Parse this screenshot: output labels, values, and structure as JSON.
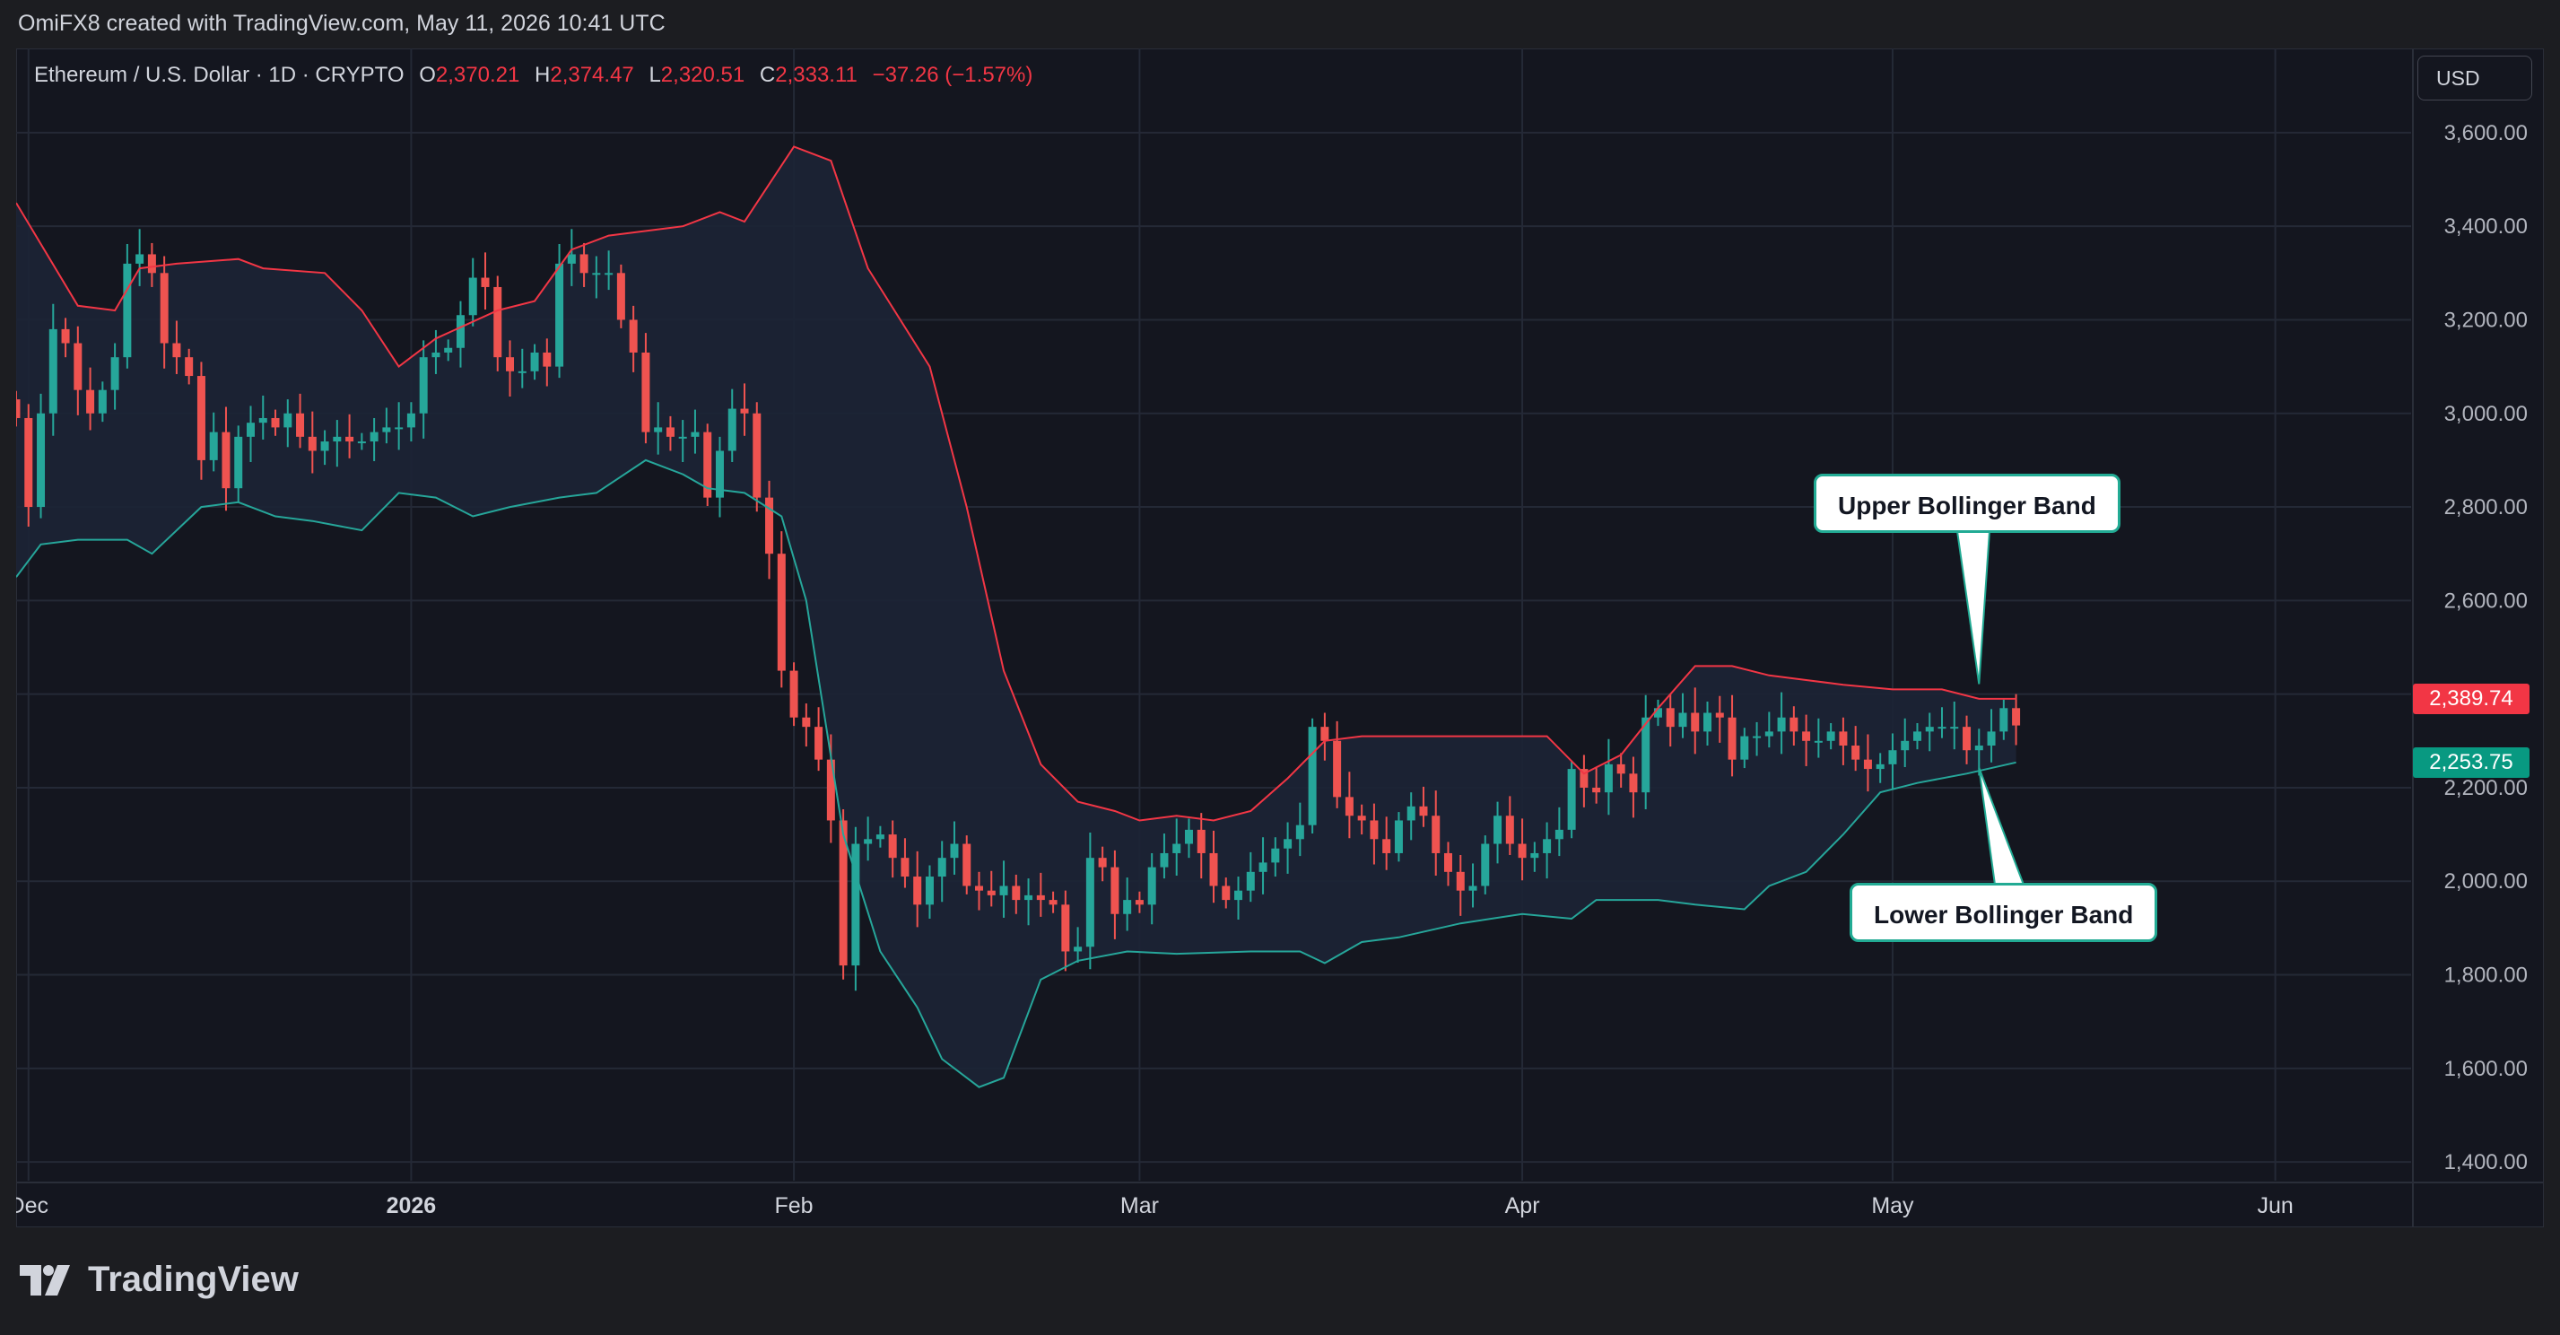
{
  "header": {
    "text": "OmiFX8 created with TradingView.com, May 11, 2026 10:41 UTC"
  },
  "legend": {
    "symbol": "Ethereum / U.S. Dollar · 1D · CRYPTO",
    "open_label": "O",
    "open": "2,370.21",
    "high_label": "H",
    "high": "2,374.47",
    "low_label": "L",
    "low": "2,320.51",
    "close_label": "C",
    "close": "2,333.11",
    "change": "−37.26 (−1.57%)"
  },
  "currency_button": {
    "label": "USD"
  },
  "price_tags": {
    "upper": {
      "label": "2,389.74",
      "color": "#f23645"
    },
    "lower": {
      "label": "2,253.75",
      "color": "#089981"
    }
  },
  "annotations": {
    "upper": "Upper Bollinger Band",
    "lower": "Lower Bollinger Band"
  },
  "footer": {
    "logo_text": "TradingView",
    "logo_icon": "tradingview-logo-icon"
  },
  "colors": {
    "up": "#26a69a",
    "down": "#ef5350",
    "upper_band": "#f23645",
    "lower_band": "#26a69a",
    "band_fill": "#1c2435",
    "grid": "#242936"
  },
  "chart_data": {
    "type": "candlestick",
    "title": "Ethereum / U.S. Dollar · 1D · CRYPTO",
    "x_ticks": [
      {
        "label": "Dec",
        "date": "2025-12-01"
      },
      {
        "label": "2026",
        "date": "2026-01-01",
        "bold": true
      },
      {
        "label": "Feb",
        "date": "2026-02-01"
      },
      {
        "label": "Mar",
        "date": "2026-03-01"
      },
      {
        "label": "Apr",
        "date": "2026-04-01"
      },
      {
        "label": "May",
        "date": "2026-05-01"
      },
      {
        "label": "Jun",
        "date": "2026-06-01"
      }
    ],
    "y_ticks": [
      "3,600.00",
      "3,400.00",
      "3,200.00",
      "3,000.00",
      "2,800.00",
      "2,600.00",
      "2,400.00",
      "2,200.00",
      "2,000.00",
      "1,800.00",
      "1,600.00",
      "1,400.00"
    ],
    "y_tick_values": [
      3600,
      3400,
      3200,
      3000,
      2800,
      2600,
      2400,
      2200,
      2000,
      1800,
      1600,
      1400
    ],
    "x_range": [
      "2025-11-30",
      "2026-06-12"
    ],
    "y_range": [
      1360,
      3780
    ],
    "grid": true,
    "close_series": [
      [
        "2025-11-30",
        2990
      ],
      [
        "2025-12-01",
        2800
      ],
      [
        "2025-12-02",
        3000
      ],
      [
        "2025-12-03",
        3180
      ],
      [
        "2025-12-04",
        3150
      ],
      [
        "2025-12-05",
        3050
      ],
      [
        "2025-12-06",
        3000
      ],
      [
        "2025-12-07",
        3050
      ],
      [
        "2025-12-08",
        3120
      ],
      [
        "2025-12-09",
        3320
      ],
      [
        "2025-12-10",
        3340
      ],
      [
        "2025-12-11",
        3300
      ],
      [
        "2025-12-12",
        3150
      ],
      [
        "2025-12-13",
        3120
      ],
      [
        "2025-12-14",
        3080
      ],
      [
        "2025-12-15",
        2900
      ],
      [
        "2025-12-16",
        2960
      ],
      [
        "2025-12-17",
        2840
      ],
      [
        "2025-12-18",
        2950
      ],
      [
        "2025-12-19",
        2980
      ],
      [
        "2025-12-20",
        2990
      ],
      [
        "2025-12-21",
        2970
      ],
      [
        "2025-12-22",
        3000
      ],
      [
        "2025-12-23",
        2950
      ],
      [
        "2025-12-24",
        2920
      ],
      [
        "2025-12-25",
        2940
      ],
      [
        "2025-12-26",
        2950
      ],
      [
        "2025-12-27",
        2940
      ],
      [
        "2025-12-28",
        2940
      ],
      [
        "2025-12-29",
        2960
      ],
      [
        "2025-12-30",
        2970
      ],
      [
        "2025-12-31",
        2970
      ],
      [
        "2026-01-01",
        3000
      ],
      [
        "2026-01-02",
        3120
      ],
      [
        "2026-01-03",
        3130
      ],
      [
        "2026-01-04",
        3140
      ],
      [
        "2026-01-05",
        3210
      ],
      [
        "2026-01-06",
        3290
      ],
      [
        "2026-01-07",
        3270
      ],
      [
        "2026-01-08",
        3120
      ],
      [
        "2026-01-09",
        3090
      ],
      [
        "2026-01-10",
        3090
      ],
      [
        "2026-01-11",
        3130
      ],
      [
        "2026-01-12",
        3100
      ],
      [
        "2026-01-13",
        3320
      ],
      [
        "2026-01-14",
        3340
      ],
      [
        "2026-01-15",
        3300
      ],
      [
        "2026-01-16",
        3300
      ],
      [
        "2026-01-17",
        3300
      ],
      [
        "2026-01-18",
        3200
      ],
      [
        "2026-01-19",
        3130
      ],
      [
        "2026-01-20",
        2960
      ],
      [
        "2026-01-21",
        2970
      ],
      [
        "2026-01-22",
        2950
      ],
      [
        "2026-01-23",
        2950
      ],
      [
        "2026-01-24",
        2960
      ],
      [
        "2026-01-25",
        2820
      ],
      [
        "2026-01-26",
        2920
      ],
      [
        "2026-01-27",
        3010
      ],
      [
        "2026-01-28",
        3000
      ],
      [
        "2026-01-29",
        2820
      ],
      [
        "2026-01-30",
        2700
      ],
      [
        "2026-01-31",
        2450
      ],
      [
        "2026-02-01",
        2350
      ],
      [
        "2026-02-02",
        2330
      ],
      [
        "2026-02-03",
        2260
      ],
      [
        "2026-02-04",
        2130
      ],
      [
        "2026-02-05",
        1820
      ],
      [
        "2026-02-06",
        2080
      ],
      [
        "2026-02-07",
        2090
      ],
      [
        "2026-02-08",
        2100
      ],
      [
        "2026-02-09",
        2050
      ],
      [
        "2026-02-10",
        2010
      ],
      [
        "2026-02-11",
        1950
      ],
      [
        "2026-02-12",
        2010
      ],
      [
        "2026-02-13",
        2050
      ],
      [
        "2026-02-14",
        2080
      ],
      [
        "2026-02-15",
        1990
      ],
      [
        "2026-02-16",
        1980
      ],
      [
        "2026-02-17",
        1970
      ],
      [
        "2026-02-18",
        1990
      ],
      [
        "2026-02-19",
        1960
      ],
      [
        "2026-02-20",
        1970
      ],
      [
        "2026-02-21",
        1960
      ],
      [
        "2026-02-22",
        1950
      ],
      [
        "2026-02-23",
        1850
      ],
      [
        "2026-02-24",
        1860
      ],
      [
        "2026-02-25",
        2050
      ],
      [
        "2026-02-26",
        2030
      ],
      [
        "2026-02-27",
        1930
      ],
      [
        "2026-02-28",
        1960
      ],
      [
        "2026-03-01",
        1950
      ],
      [
        "2026-03-02",
        2030
      ],
      [
        "2026-03-03",
        2060
      ],
      [
        "2026-03-04",
        2080
      ],
      [
        "2026-03-05",
        2110
      ],
      [
        "2026-03-06",
        2060
      ],
      [
        "2026-03-07",
        1990
      ],
      [
        "2026-03-08",
        1960
      ],
      [
        "2026-03-09",
        1980
      ],
      [
        "2026-03-10",
        2020
      ],
      [
        "2026-03-11",
        2040
      ],
      [
        "2026-03-12",
        2070
      ],
      [
        "2026-03-13",
        2090
      ],
      [
        "2026-03-14",
        2120
      ],
      [
        "2026-03-15",
        2330
      ],
      [
        "2026-03-16",
        2300
      ],
      [
        "2026-03-17",
        2180
      ],
      [
        "2026-03-18",
        2140
      ],
      [
        "2026-03-19",
        2130
      ],
      [
        "2026-03-20",
        2090
      ],
      [
        "2026-03-21",
        2060
      ],
      [
        "2026-03-22",
        2130
      ],
      [
        "2026-03-23",
        2160
      ],
      [
        "2026-03-24",
        2140
      ],
      [
        "2026-03-25",
        2060
      ],
      [
        "2026-03-26",
        2020
      ],
      [
        "2026-03-27",
        1980
      ],
      [
        "2026-03-28",
        1990
      ],
      [
        "2026-03-29",
        2080
      ],
      [
        "2026-03-30",
        2140
      ],
      [
        "2026-03-31",
        2080
      ],
      [
        "2026-04-01",
        2050
      ],
      [
        "2026-04-02",
        2060
      ],
      [
        "2026-04-03",
        2090
      ],
      [
        "2026-04-04",
        2110
      ],
      [
        "2026-04-05",
        2240
      ],
      [
        "2026-04-06",
        2200
      ],
      [
        "2026-04-07",
        2190
      ],
      [
        "2026-04-08",
        2250
      ],
      [
        "2026-04-09",
        2230
      ],
      [
        "2026-04-10",
        2190
      ],
      [
        "2026-04-11",
        2350
      ],
      [
        "2026-04-12",
        2370
      ],
      [
        "2026-04-13",
        2330
      ],
      [
        "2026-04-14",
        2360
      ],
      [
        "2026-04-15",
        2320
      ],
      [
        "2026-04-16",
        2360
      ],
      [
        "2026-04-17",
        2350
      ],
      [
        "2026-04-18",
        2260
      ],
      [
        "2026-04-19",
        2310
      ],
      [
        "2026-04-20",
        2310
      ],
      [
        "2026-04-21",
        2320
      ],
      [
        "2026-04-22",
        2350
      ],
      [
        "2026-04-23",
        2320
      ],
      [
        "2026-04-24",
        2300
      ],
      [
        "2026-04-25",
        2300
      ],
      [
        "2026-04-26",
        2320
      ],
      [
        "2026-04-27",
        2290
      ],
      [
        "2026-04-28",
        2260
      ],
      [
        "2026-04-29",
        2240
      ],
      [
        "2026-04-30",
        2250
      ],
      [
        "2026-05-01",
        2280
      ],
      [
        "2026-05-02",
        2300
      ],
      [
        "2026-05-03",
        2320
      ],
      [
        "2026-05-04",
        2330
      ],
      [
        "2026-05-05",
        2330
      ],
      [
        "2026-05-06",
        2330
      ],
      [
        "2026-05-07",
        2280
      ],
      [
        "2026-05-08",
        2290
      ],
      [
        "2026-05-09",
        2320
      ],
      [
        "2026-05-10",
        2370
      ],
      [
        "2026-05-11",
        2333
      ]
    ],
    "upper_band": [
      [
        "2025-11-30",
        3450
      ],
      [
        "2025-12-05",
        3230
      ],
      [
        "2025-12-08",
        3220
      ],
      [
        "2025-12-10",
        3310
      ],
      [
        "2025-12-13",
        3320
      ],
      [
        "2025-12-18",
        3330
      ],
      [
        "2025-12-20",
        3310
      ],
      [
        "2025-12-25",
        3300
      ],
      [
        "2025-12-28",
        3220
      ],
      [
        "2025-12-31",
        3100
      ],
      [
        "2026-01-03",
        3160
      ],
      [
        "2026-01-08",
        3220
      ],
      [
        "2026-01-11",
        3240
      ],
      [
        "2026-01-14",
        3350
      ],
      [
        "2026-01-17",
        3380
      ],
      [
        "2026-01-23",
        3400
      ],
      [
        "2026-01-26",
        3430
      ],
      [
        "2026-01-28",
        3410
      ],
      [
        "2026-01-29",
        3450
      ],
      [
        "2026-02-01",
        3570
      ],
      [
        "2026-02-04",
        3540
      ],
      [
        "2026-02-07",
        3310
      ],
      [
        "2026-02-12",
        3100
      ],
      [
        "2026-02-15",
        2800
      ],
      [
        "2026-02-18",
        2450
      ],
      [
        "2026-02-21",
        2250
      ],
      [
        "2026-02-24",
        2170
      ],
      [
        "2026-02-27",
        2150
      ],
      [
        "2026-03-01",
        2130
      ],
      [
        "2026-03-04",
        2140
      ],
      [
        "2026-03-07",
        2130
      ],
      [
        "2026-03-10",
        2150
      ],
      [
        "2026-03-13",
        2220
      ],
      [
        "2026-03-16",
        2300
      ],
      [
        "2026-03-19",
        2310
      ],
      [
        "2026-03-24",
        2310
      ],
      [
        "2026-03-31",
        2310
      ],
      [
        "2026-04-03",
        2310
      ],
      [
        "2026-04-06",
        2230
      ],
      [
        "2026-04-09",
        2270
      ],
      [
        "2026-04-12",
        2370
      ],
      [
        "2026-04-15",
        2460
      ],
      [
        "2026-04-18",
        2460
      ],
      [
        "2026-04-21",
        2440
      ],
      [
        "2026-04-24",
        2430
      ],
      [
        "2026-04-27",
        2420
      ],
      [
        "2026-05-01",
        2410
      ],
      [
        "2026-05-05",
        2410
      ],
      [
        "2026-05-08",
        2390
      ],
      [
        "2026-05-11",
        2390
      ]
    ],
    "lower_band": [
      [
        "2025-11-30",
        2650
      ],
      [
        "2025-12-02",
        2720
      ],
      [
        "2025-12-05",
        2730
      ],
      [
        "2025-12-09",
        2730
      ],
      [
        "2025-12-11",
        2700
      ],
      [
        "2025-12-15",
        2800
      ],
      [
        "2025-12-18",
        2810
      ],
      [
        "2025-12-21",
        2780
      ],
      [
        "2025-12-24",
        2770
      ],
      [
        "2025-12-28",
        2750
      ],
      [
        "2025-12-31",
        2830
      ],
      [
        "2026-01-03",
        2820
      ],
      [
        "2026-01-06",
        2780
      ],
      [
        "2026-01-09",
        2800
      ],
      [
        "2026-01-13",
        2820
      ],
      [
        "2026-01-16",
        2830
      ],
      [
        "2026-01-20",
        2900
      ],
      [
        "2026-01-23",
        2870
      ],
      [
        "2026-01-25",
        2840
      ],
      [
        "2026-01-28",
        2830
      ],
      [
        "2026-01-31",
        2780
      ],
      [
        "2026-02-02",
        2600
      ],
      [
        "2026-02-05",
        2100
      ],
      [
        "2026-02-08",
        1850
      ],
      [
        "2026-02-11",
        1730
      ],
      [
        "2026-02-13",
        1620
      ],
      [
        "2026-02-16",
        1560
      ],
      [
        "2026-02-18",
        1580
      ],
      [
        "2026-02-21",
        1790
      ],
      [
        "2026-02-24",
        1830
      ],
      [
        "2026-02-28",
        1850
      ],
      [
        "2026-03-04",
        1845
      ],
      [
        "2026-03-10",
        1850
      ],
      [
        "2026-03-14",
        1850
      ],
      [
        "2026-03-16",
        1825
      ],
      [
        "2026-03-19",
        1870
      ],
      [
        "2026-03-22",
        1880
      ],
      [
        "2026-03-27",
        1910
      ],
      [
        "2026-04-01",
        1930
      ],
      [
        "2026-04-05",
        1920
      ],
      [
        "2026-04-07",
        1960
      ],
      [
        "2026-04-12",
        1960
      ],
      [
        "2026-04-15",
        1950
      ],
      [
        "2026-04-19",
        1940
      ],
      [
        "2026-04-21",
        1990
      ],
      [
        "2026-04-24",
        2020
      ],
      [
        "2026-04-27",
        2100
      ],
      [
        "2026-04-30",
        2190
      ],
      [
        "2026-05-03",
        2210
      ],
      [
        "2026-05-07",
        2230
      ],
      [
        "2026-05-11",
        2254
      ]
    ]
  }
}
